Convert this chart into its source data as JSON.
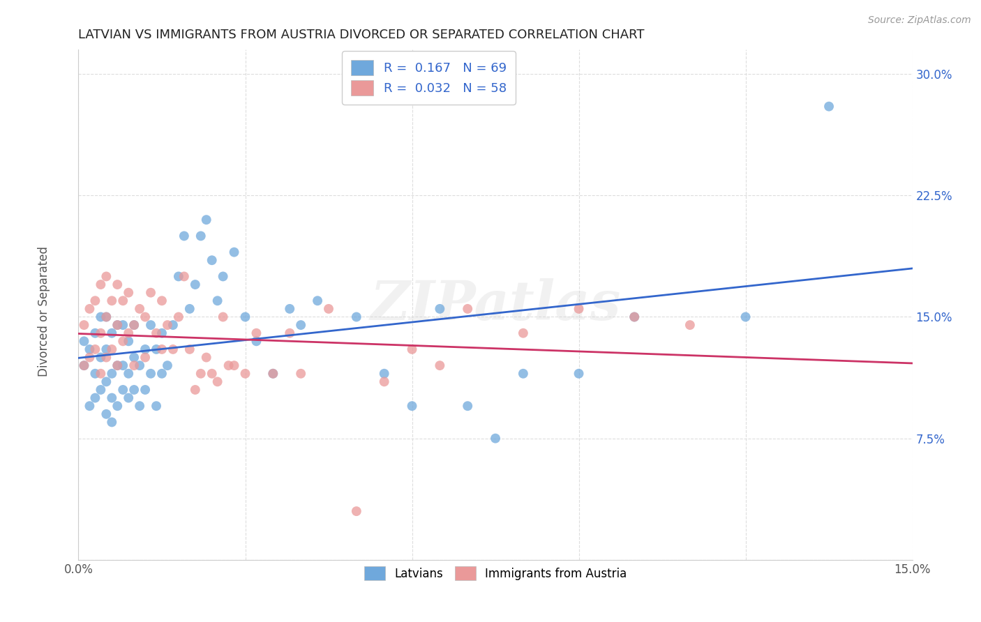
{
  "title": "LATVIAN VS IMMIGRANTS FROM AUSTRIA DIVORCED OR SEPARATED CORRELATION CHART",
  "source": "Source: ZipAtlas.com",
  "ylabel": "Divorced or Separated",
  "xlim": [
    0.0,
    0.15
  ],
  "ylim": [
    0.0,
    0.315
  ],
  "R1": 0.167,
  "N1": 69,
  "R2": 0.032,
  "N2": 58,
  "watermark": "ZIPatlas",
  "blue_color": "#6fa8dc",
  "pink_color": "#ea9999",
  "blue_line_color": "#3366cc",
  "pink_line_color": "#cc3366",
  "latvian_x": [
    0.001,
    0.001,
    0.002,
    0.002,
    0.003,
    0.003,
    0.003,
    0.004,
    0.004,
    0.004,
    0.005,
    0.005,
    0.005,
    0.005,
    0.006,
    0.006,
    0.006,
    0.006,
    0.007,
    0.007,
    0.007,
    0.008,
    0.008,
    0.008,
    0.009,
    0.009,
    0.009,
    0.01,
    0.01,
    0.01,
    0.011,
    0.011,
    0.012,
    0.012,
    0.013,
    0.013,
    0.014,
    0.014,
    0.015,
    0.015,
    0.016,
    0.017,
    0.018,
    0.019,
    0.02,
    0.021,
    0.022,
    0.023,
    0.024,
    0.025,
    0.026,
    0.028,
    0.03,
    0.032,
    0.035,
    0.038,
    0.04,
    0.043,
    0.05,
    0.055,
    0.06,
    0.065,
    0.07,
    0.075,
    0.08,
    0.09,
    0.1,
    0.12,
    0.135
  ],
  "latvian_y": [
    0.12,
    0.135,
    0.095,
    0.13,
    0.1,
    0.115,
    0.14,
    0.105,
    0.125,
    0.15,
    0.09,
    0.11,
    0.13,
    0.15,
    0.085,
    0.1,
    0.115,
    0.14,
    0.095,
    0.12,
    0.145,
    0.105,
    0.12,
    0.145,
    0.1,
    0.115,
    0.135,
    0.105,
    0.125,
    0.145,
    0.095,
    0.12,
    0.105,
    0.13,
    0.115,
    0.145,
    0.095,
    0.13,
    0.115,
    0.14,
    0.12,
    0.145,
    0.175,
    0.2,
    0.155,
    0.17,
    0.2,
    0.21,
    0.185,
    0.16,
    0.175,
    0.19,
    0.15,
    0.135,
    0.115,
    0.155,
    0.145,
    0.16,
    0.15,
    0.115,
    0.095,
    0.155,
    0.095,
    0.075,
    0.115,
    0.115,
    0.15,
    0.15,
    0.28
  ],
  "austria_x": [
    0.001,
    0.001,
    0.002,
    0.002,
    0.003,
    0.003,
    0.004,
    0.004,
    0.004,
    0.005,
    0.005,
    0.005,
    0.006,
    0.006,
    0.007,
    0.007,
    0.007,
    0.008,
    0.008,
    0.009,
    0.009,
    0.01,
    0.01,
    0.011,
    0.012,
    0.012,
    0.013,
    0.014,
    0.015,
    0.015,
    0.016,
    0.017,
    0.018,
    0.019,
    0.02,
    0.021,
    0.022,
    0.023,
    0.024,
    0.025,
    0.026,
    0.027,
    0.028,
    0.03,
    0.032,
    0.035,
    0.038,
    0.04,
    0.045,
    0.05,
    0.055,
    0.06,
    0.065,
    0.07,
    0.08,
    0.09,
    0.1,
    0.11
  ],
  "austria_y": [
    0.12,
    0.145,
    0.125,
    0.155,
    0.13,
    0.16,
    0.115,
    0.14,
    0.17,
    0.125,
    0.15,
    0.175,
    0.13,
    0.16,
    0.12,
    0.145,
    0.17,
    0.135,
    0.16,
    0.14,
    0.165,
    0.12,
    0.145,
    0.155,
    0.125,
    0.15,
    0.165,
    0.14,
    0.13,
    0.16,
    0.145,
    0.13,
    0.15,
    0.175,
    0.13,
    0.105,
    0.115,
    0.125,
    0.115,
    0.11,
    0.15,
    0.12,
    0.12,
    0.115,
    0.14,
    0.115,
    0.14,
    0.115,
    0.155,
    0.03,
    0.11,
    0.13,
    0.12,
    0.155,
    0.14,
    0.155,
    0.15,
    0.145
  ]
}
